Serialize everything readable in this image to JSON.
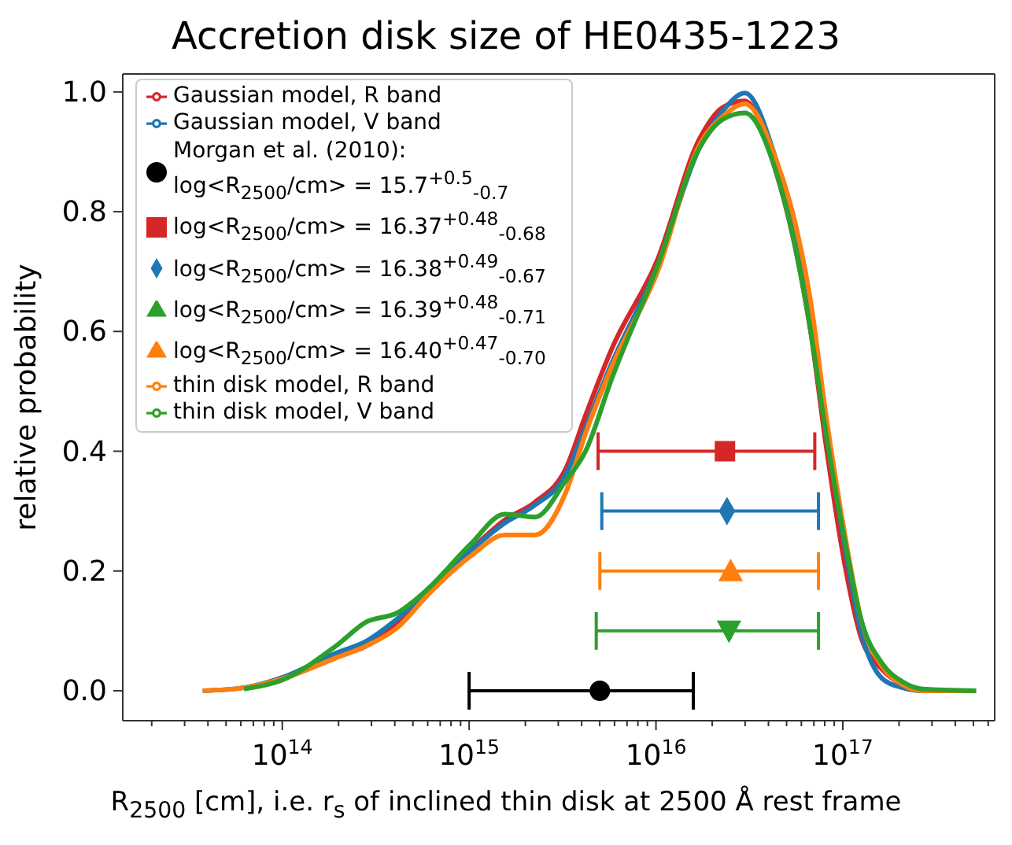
{
  "chart_data": {
    "type": "line",
    "title": "Accretion disk size of HE0435-1223",
    "xlabel": "R$_{2500}$ [cm], i.e. r$_{s}$ of inclined thin disk at 2500 Å rest frame",
    "ylabel": "relative probability",
    "log": "x",
    "grid": false,
    "legend": "top left",
    "line_style": "solid",
    "xlim": [
      14000000000000.0,
      6.5e+17
    ],
    "xticks": [
      {
        "value": 20000000000000.0,
        "label": null
      },
      {
        "value": 30000000000000.0,
        "label": null
      },
      {
        "value": 40000000000000.0,
        "label": null
      },
      {
        "value": 50000000000000.0,
        "label": null
      },
      {
        "value": 60000000000000.0,
        "label": null
      },
      {
        "value": 70000000000000.0,
        "label": null
      },
      {
        "value": 80000000000000.0,
        "label": null
      },
      {
        "value": 90000000000000.0,
        "label": null
      },
      {
        "value": 100000000000000.0,
        "label": "10$^{14}$"
      },
      {
        "value": 200000000000000.0,
        "label": null
      },
      {
        "value": 300000000000000.0,
        "label": null
      },
      {
        "value": 400000000000000.0,
        "label": null
      },
      {
        "value": 500000000000000.0,
        "label": null
      },
      {
        "value": 600000000000000.0,
        "label": null
      },
      {
        "value": 700000000000000.0,
        "label": null
      },
      {
        "value": 800000000000000.0,
        "label": null
      },
      {
        "value": 900000000000000.0,
        "label": null
      },
      {
        "value": 1000000000000000.0,
        "label": "10$^{15}$"
      },
      {
        "value": 2000000000000000.0,
        "label": null
      },
      {
        "value": 3000000000000000.0,
        "label": null
      },
      {
        "value": 4000000000000000.0,
        "label": null
      },
      {
        "value": 5000000000000000.0,
        "label": null
      },
      {
        "value": 6000000000000000.0,
        "label": null
      },
      {
        "value": 7000000000000000.0,
        "label": null
      },
      {
        "value": 8000000000000000.0,
        "label": null
      },
      {
        "value": 9000000000000000.0,
        "label": null
      },
      {
        "value": 1e+16,
        "label": "10$^{16}$"
      },
      {
        "value": 2e+16,
        "label": null
      },
      {
        "value": 3e+16,
        "label": null
      },
      {
        "value": 4e+16,
        "label": null
      },
      {
        "value": 5e+16,
        "label": null
      },
      {
        "value": 6e+16,
        "label": null
      },
      {
        "value": 7e+16,
        "label": null
      },
      {
        "value": 8e+16,
        "label": null
      },
      {
        "value": 9e+16,
        "label": null
      },
      {
        "value": 1e+17,
        "label": "10$^{17}$"
      },
      {
        "value": 2e+17,
        "label": null
      },
      {
        "value": 3e+17,
        "label": null
      },
      {
        "value": 4e+17,
        "label": null
      },
      {
        "value": 5e+17,
        "label": null
      },
      {
        "value": 6e+17,
        "label": null
      }
    ],
    "ylim": [
      -0.05,
      1.03
    ],
    "yticks": [
      {
        "value": 0,
        "label": "0.0"
      },
      {
        "value": 0.2,
        "label": "0.2"
      },
      {
        "value": 0.4,
        "label": "0.4"
      },
      {
        "value": 0.6,
        "label": "0.6"
      },
      {
        "value": 0.8,
        "label": "0.8"
      },
      {
        "value": 1,
        "label": "1.0"
      }
    ],
    "x": [
      37500000000000.0,
      62400000000000.0,
      100000000000000.0,
      194000000000000.0,
      282000000000000.0,
      412000000000000.0,
      601000000000000.0,
      1020000000000000.0,
      1550000000000000.0,
      2250000000000000.0,
      3280000000000000.0,
      4200000000000000.0,
      5780000000000000.0,
      1.02e+16,
      1.7e+16,
      2.3e+16,
      2.99e+16,
      4.36e+16,
      5.57e+16,
      6.73e+16,
      8.13e+16,
      1.04e+17,
      1.25e+17,
      1.63e+17,
      2.09e+17,
      2.67e+17,
      5.16e+17
    ],
    "series": [
      {
        "name": "Gaussian model, R band",
        "color": "#d62728",
        "values": [
          null,
          null,
          null,
          0.058,
          0.075,
          0.115,
          0.165,
          0.235,
          0.285,
          0.315,
          0.37,
          0.46,
          0.57,
          0.72,
          0.92,
          0.975,
          0.985,
          0.87,
          0.74,
          0.6,
          0.41,
          0.2,
          0.09,
          0.035,
          0.01,
          0,
          0
        ]
      },
      {
        "name": "log<R$_{2500}$/cm> = 16.37$^{+0.48}$$_{-0.68}$",
        "type": "scatter",
        "marker": "square",
        "color": "#d62728",
        "x": [
          2.34e+16
        ],
        "values": [
          0.4
        ],
        "xerrors": [
          [
            4900000000000000.0,
            7.08e+16
          ]
        ]
      },
      {
        "name": "Gaussian model, V band",
        "color": "#1f77b4",
        "values": [
          0,
          0.005,
          0.022,
          0.063,
          0.083,
          0.12,
          0.166,
          0.234,
          0.28,
          0.31,
          0.36,
          0.44,
          0.546,
          0.71,
          0.905,
          0.97,
          0.998,
          0.89,
          0.766,
          0.63,
          0.44,
          0.23,
          0.1,
          0.02,
          0.005,
          0,
          0
        ]
      },
      {
        "name": "log<R$_{2500}$/cm> = 16.38$^{+0.49}$$_{-0.67}$",
        "type": "scatter",
        "marker": "diamond",
        "color": "#1f77b4",
        "x": [
          2.4e+16
        ],
        "values": [
          0.3
        ],
        "xerrors": [
          [
            5130000000000000.0,
            7.41e+16
          ]
        ]
      },
      {
        "name": "thin disk model, R band",
        "color": "#ff7f0e",
        "values": [
          0,
          0.005,
          0.02,
          0.055,
          0.075,
          0.105,
          0.16,
          0.225,
          0.26,
          0.26,
          0.33,
          0.43,
          0.54,
          0.7,
          0.91,
          0.96,
          0.98,
          0.89,
          0.78,
          0.65,
          0.46,
          0.25,
          0.12,
          0.04,
          0.01,
          0,
          0
        ]
      },
      {
        "name": "log<R$_{2500}$/cm> = 16.40$^{+0.47}$$_{-0.70}$",
        "type": "scatter",
        "marker": "triangle",
        "color": "#ff7f0e",
        "x": [
          2.51e+16
        ],
        "values": [
          0.2
        ],
        "xerrors": [
          [
            5010000000000000.0,
            7.41e+16
          ]
        ]
      },
      {
        "name": "thin disk model, V band",
        "color": "#2ca02c",
        "values": [
          null,
          0.003,
          0.018,
          0.075,
          0.115,
          0.13,
          0.17,
          0.245,
          0.295,
          0.29,
          0.35,
          0.4,
          0.52,
          0.71,
          0.905,
          0.955,
          0.965,
          0.87,
          0.74,
          0.6,
          0.43,
          0.24,
          0.12,
          0.045,
          0.015,
          0.003,
          0
        ]
      },
      {
        "name": "log<R$_{2500}$/cm> = 16.39$^{+0.48}$$_{-0.71}$",
        "type": "scatter",
        "marker": "triangle-down",
        "color": "#2ca02c",
        "x": [
          2.46e+16
        ],
        "values": [
          0.1
        ],
        "xerrors": [
          [
            4790000000000000.0,
            7.41e+16
          ]
        ]
      },
      {
        "name": "Morgan et al. (2010):\nlog<R$_{2500}$/cm> = 15.7$^{+0.5}$$_{-0.7}$",
        "type": "scatter",
        "marker": "circle",
        "color": "#000000",
        "x": [
          5010000000000000.0
        ],
        "values": [
          0
        ],
        "xerrors": [
          [
            1000000000000000.0,
            1.585e+16
          ]
        ]
      }
    ]
  }
}
